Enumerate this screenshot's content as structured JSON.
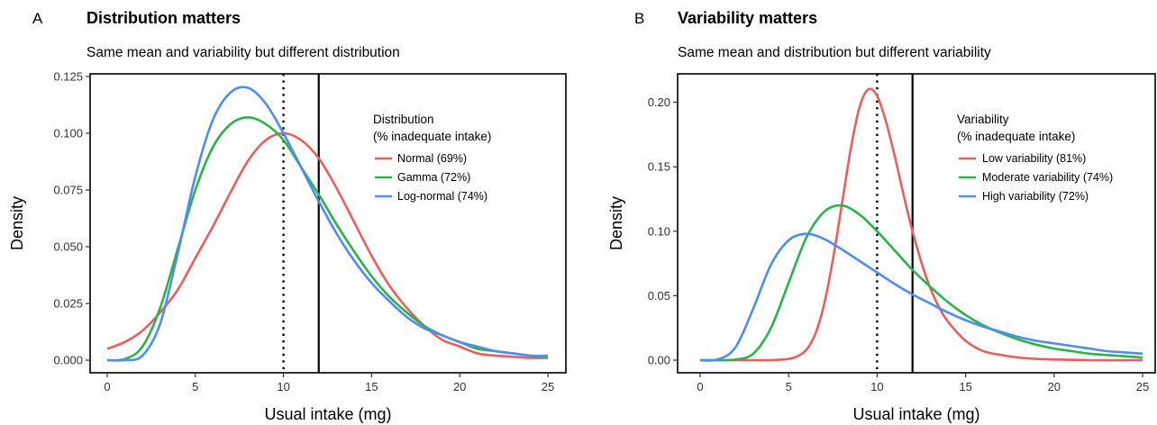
{
  "chart_data": [
    {
      "type": "line",
      "panel_label": "A",
      "title": "Distribution matters",
      "subtitle": "Same mean and variability but different distribution",
      "xlabel": "Usual intake (mg)",
      "ylabel": "Density",
      "xlim": [
        0,
        25
      ],
      "ylim": [
        0,
        0.125
      ],
      "xticks": [
        "0",
        "5",
        "10",
        "15",
        "20",
        "25"
      ],
      "yticks": [
        "0.000",
        "0.025",
        "0.050",
        "0.075",
        "0.100",
        "0.125"
      ],
      "grid": false,
      "legend_position": "top-right",
      "legend_title": [
        "Distribution",
        "(% inadequate intake)"
      ],
      "reference_lines": [
        {
          "x": 10,
          "style": "dotted"
        },
        {
          "x": 12,
          "style": "solid"
        }
      ],
      "series": [
        {
          "name": "Normal (69%)",
          "color": "#E5605F",
          "x": [
            0,
            1,
            2,
            3,
            4,
            5,
            6,
            7,
            8,
            9,
            10,
            11,
            12,
            13,
            14,
            15,
            16,
            17,
            18,
            19,
            20,
            21,
            22,
            23,
            24,
            25
          ],
          "y": [
            0.005,
            0.008,
            0.013,
            0.021,
            0.031,
            0.045,
            0.059,
            0.074,
            0.088,
            0.097,
            0.1,
            0.097,
            0.089,
            0.076,
            0.061,
            0.046,
            0.033,
            0.023,
            0.015,
            0.009,
            0.006,
            0.003,
            0.002,
            0.0015,
            0.001,
            0.001
          ]
        },
        {
          "name": "Gamma (72%)",
          "color": "#2DB24A",
          "x": [
            0,
            1,
            2,
            3,
            4,
            5,
            6,
            7,
            8,
            9,
            10,
            11,
            12,
            13,
            14,
            15,
            16,
            17,
            18,
            19,
            20,
            21,
            22,
            23,
            24,
            25
          ],
          "y": [
            0,
            0.0005,
            0.006,
            0.023,
            0.049,
            0.075,
            0.094,
            0.104,
            0.107,
            0.104,
            0.097,
            0.085,
            0.073,
            0.06,
            0.048,
            0.037,
            0.028,
            0.021,
            0.015,
            0.011,
            0.008,
            0.005,
            0.004,
            0.003,
            0.002,
            0.001
          ]
        },
        {
          "name": "Log-normal (74%)",
          "color": "#4F8CF3",
          "x": [
            0,
            1,
            2,
            3,
            4,
            5,
            6,
            7,
            8,
            9,
            10,
            11,
            12,
            13,
            14,
            15,
            16,
            17,
            18,
            19,
            20,
            21,
            22,
            23,
            24,
            25
          ],
          "y": [
            0,
            0,
            0.002,
            0.016,
            0.047,
            0.081,
            0.106,
            0.118,
            0.12,
            0.113,
            0.1,
            0.085,
            0.07,
            0.056,
            0.044,
            0.034,
            0.026,
            0.019,
            0.014,
            0.011,
            0.008,
            0.006,
            0.004,
            0.003,
            0.002,
            0.002
          ]
        }
      ]
    },
    {
      "type": "line",
      "panel_label": "B",
      "title": "Variability matters",
      "subtitle": "Same mean and distribution but different variability",
      "xlabel": "Usual intake (mg)",
      "ylabel": "Density",
      "xlim": [
        0,
        25
      ],
      "ylim": [
        0,
        0.22
      ],
      "xticks": [
        "0",
        "5",
        "10",
        "15",
        "20",
        "25"
      ],
      "yticks": [
        "0.00",
        "0.05",
        "0.10",
        "0.15",
        "0.20"
      ],
      "grid": false,
      "legend_position": "top-right",
      "legend_title": [
        "Variability",
        "(% inadequate intake)"
      ],
      "reference_lines": [
        {
          "x": 10,
          "style": "dotted"
        },
        {
          "x": 12,
          "style": "solid"
        }
      ],
      "series": [
        {
          "name": "Low variability (81%)",
          "color": "#E5605F",
          "x": [
            0,
            1,
            2,
            3,
            4,
            5,
            5.5,
            6,
            6.5,
            7,
            7.5,
            8,
            8.5,
            9,
            9.5,
            10,
            10.5,
            11,
            11.5,
            12,
            12.5,
            13,
            13.5,
            14,
            15,
            16,
            17,
            18,
            19,
            20,
            22,
            25
          ],
          "y": [
            0,
            0,
            0,
            0,
            0,
            0.001,
            0.003,
            0.008,
            0.02,
            0.043,
            0.078,
            0.12,
            0.163,
            0.196,
            0.21,
            0.205,
            0.185,
            0.158,
            0.128,
            0.1,
            0.076,
            0.056,
            0.041,
            0.03,
            0.015,
            0.007,
            0.004,
            0.002,
            0.001,
            0.0005,
            0,
            0
          ]
        },
        {
          "name": "Moderate variability (74%)",
          "color": "#2DB24A",
          "x": [
            0,
            1,
            2,
            3,
            4,
            5,
            6,
            7,
            8,
            9,
            10,
            11,
            12,
            13,
            14,
            15,
            16,
            17,
            18,
            19,
            20,
            21,
            22,
            23,
            24,
            25
          ],
          "y": [
            0,
            0,
            0.0005,
            0.005,
            0.025,
            0.06,
            0.095,
            0.115,
            0.12,
            0.113,
            0.1,
            0.085,
            0.07,
            0.057,
            0.045,
            0.035,
            0.027,
            0.021,
            0.016,
            0.012,
            0.009,
            0.007,
            0.005,
            0.004,
            0.003,
            0.002
          ]
        },
        {
          "name": "High variability (72%)",
          "color": "#4F8CF3",
          "x": [
            0,
            1,
            2,
            3,
            4,
            5,
            6,
            7,
            8,
            9,
            10,
            11,
            12,
            13,
            14,
            15,
            16,
            17,
            18,
            19,
            20,
            21,
            22,
            23,
            24,
            25
          ],
          "y": [
            0,
            0.0005,
            0.01,
            0.04,
            0.074,
            0.093,
            0.098,
            0.094,
            0.086,
            0.077,
            0.068,
            0.059,
            0.051,
            0.044,
            0.037,
            0.031,
            0.026,
            0.022,
            0.018,
            0.015,
            0.013,
            0.011,
            0.009,
            0.007,
            0.006,
            0.005
          ]
        }
      ]
    }
  ]
}
